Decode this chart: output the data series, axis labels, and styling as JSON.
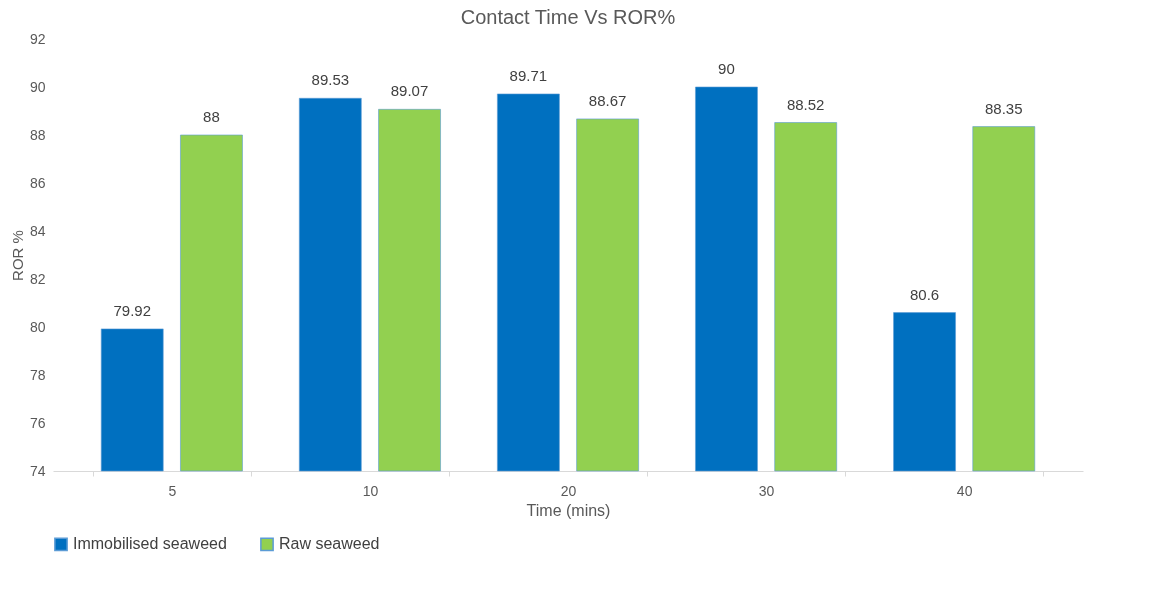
{
  "chart_data": {
    "type": "bar",
    "title": "Contact Time Vs ROR%",
    "xlabel": "Time (mins)",
    "ylabel": "ROR %",
    "categories": [
      "5",
      "10",
      "20",
      "30",
      "40"
    ],
    "series": [
      {
        "name": "Immobilised seaweed",
        "color": "#0070c0",
        "values": [
          79.92,
          89.53,
          89.71,
          90,
          80.6
        ]
      },
      {
        "name": "Raw seaweed",
        "color": "#92d050",
        "values": [
          88,
          89.07,
          88.67,
          88.52,
          88.35
        ]
      }
    ],
    "ylim": [
      74,
      92
    ],
    "yticks": [
      74,
      76,
      78,
      80,
      82,
      84,
      86,
      88,
      90,
      92
    ],
    "grid": false,
    "legend": "bottom",
    "data_labels": true
  }
}
